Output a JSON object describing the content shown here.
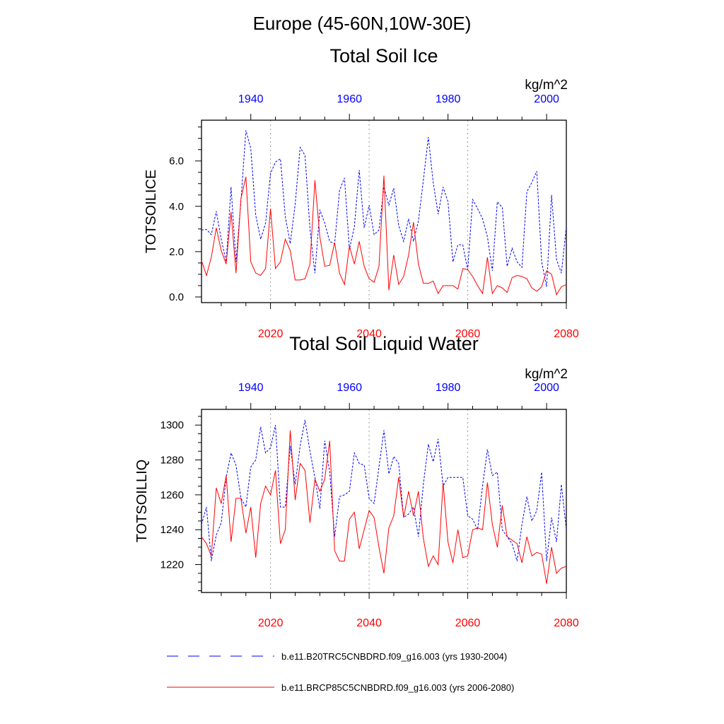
{
  "figure_title": "Europe (45-60N,10W-30E)",
  "colors": {
    "historical": "#0000ff",
    "future": "#ff0000",
    "grid": "#999999",
    "axis": "#000000"
  },
  "legend": [
    {
      "label": "b.e11.B20TRC5CNBDRD.f09_g16.003 (yrs 1930-2004)",
      "style": "dashed",
      "color": "#0000ff"
    },
    {
      "label": "b.e11.BRCP85C5CNBDRD.f09_g16.003 (yrs 2006-2080)",
      "style": "solid",
      "color": "#ff0000"
    }
  ],
  "chart_data": [
    {
      "type": "line",
      "title": "Total Soil Ice",
      "units": "kg/m^2",
      "ylabel": "TOTSOILICE",
      "ylim": [
        -0.25,
        7.8
      ],
      "yticks": [
        0.0,
        2.0,
        4.0,
        6.0
      ],
      "ytick_labels": [
        "0.0",
        "2.0",
        "4.0",
        "6.0"
      ],
      "yminor": [
        0.5,
        1.0,
        1.5,
        2.5,
        3.0,
        3.5,
        4.5,
        5.0,
        5.5,
        6.5,
        7.0,
        7.5
      ],
      "x_bottom": {
        "range": [
          2006,
          2080
        ],
        "ticks": [
          2020,
          2040,
          2060,
          2080
        ],
        "labels": [
          "2020",
          "2040",
          "2060",
          "2080"
        ]
      },
      "x_top": {
        "range": [
          1930,
          2004
        ],
        "ticks": [
          1940,
          1960,
          1980,
          2000
        ],
        "labels": [
          "1940",
          "1960",
          "1980",
          "2000"
        ]
      },
      "grid_x": [
        2020,
        2040,
        2060
      ],
      "series": [
        {
          "name": "b.e11.B20TRC5CNBDRD.f09_g16.003 (yrs 1930-2004)",
          "axis": "top",
          "x_start": 1930,
          "values": [
            2.95,
            2.98,
            2.75,
            3.78,
            2.55,
            1.55,
            4.85,
            1.55,
            4.25,
            7.35,
            6.55,
            3.6,
            2.55,
            3.25,
            5.45,
            5.95,
            6.1,
            3.55,
            2.35,
            4.1,
            6.6,
            6.25,
            3.0,
            1.05,
            3.85,
            3.25,
            2.45,
            2.35,
            4.7,
            5.25,
            2.1,
            3.1,
            5.6,
            3.05,
            4.05,
            2.75,
            2.95,
            4.85,
            4.05,
            4.8,
            3.15,
            2.45,
            3.45,
            2.45,
            3.35,
            5.15,
            7.05,
            5.05,
            3.65,
            4.85,
            4.2,
            1.55,
            2.3,
            2.3,
            1.2,
            4.3,
            3.9,
            3.45,
            2.65,
            1.15,
            4.2,
            3.95,
            1.35,
            2.15,
            1.55,
            1.3,
            4.65,
            5.05,
            5.55,
            1.55,
            0.45,
            4.5,
            1.65,
            1.05,
            3.1
          ]
        },
        {
          "name": "b.e11.BRCP85C5CNBDRD.f09_g16.003 (yrs 2006-2080)",
          "axis": "bottom",
          "x_start": 2006,
          "values": [
            1.6,
            0.95,
            1.75,
            3.05,
            2.05,
            1.45,
            3.75,
            1.05,
            4.35,
            5.3,
            1.55,
            1.05,
            0.95,
            1.25,
            3.9,
            1.25,
            1.55,
            2.55,
            2.05,
            0.75,
            0.75,
            0.8,
            1.45,
            5.15,
            2.65,
            1.35,
            1.4,
            2.4,
            1.05,
            0.55,
            2.25,
            1.45,
            2.45,
            1.35,
            0.8,
            0.65,
            1.35,
            5.35,
            0.3,
            1.85,
            0.55,
            0.9,
            1.85,
            3.3,
            1.45,
            0.6,
            0.6,
            0.7,
            0.15,
            0.5,
            0.5,
            0.5,
            0.35,
            1.25,
            1.2,
            0.9,
            0.5,
            0.15,
            1.75,
            0.15,
            0.5,
            0.4,
            0.2,
            0.85,
            0.95,
            0.9,
            0.8,
            0.4,
            0.25,
            0.45,
            1.15,
            1.0,
            0.1,
            0.45,
            0.55
          ]
        }
      ]
    },
    {
      "type": "line",
      "title": "Total Soil Liquid Water",
      "units": "kg/m^2",
      "ylabel": "TOTSOILLIQ",
      "ylim": [
        1204,
        1309
      ],
      "yticks": [
        1220,
        1240,
        1260,
        1280,
        1300
      ],
      "ytick_labels": [
        "1220",
        "1240",
        "1260",
        "1280",
        "1300"
      ],
      "yminor": [
        1205,
        1210,
        1215,
        1225,
        1230,
        1235,
        1245,
        1250,
        1255,
        1265,
        1270,
        1275,
        1285,
        1290,
        1295,
        1305
      ],
      "x_bottom": {
        "range": [
          2006,
          2080
        ],
        "ticks": [
          2020,
          2040,
          2060,
          2080
        ],
        "labels": [
          "2020",
          "2040",
          "2060",
          "2080"
        ]
      },
      "x_top": {
        "range": [
          1930,
          2004
        ],
        "ticks": [
          1940,
          1960,
          1980,
          2000
        ],
        "labels": [
          "1940",
          "1960",
          "1980",
          "2000"
        ]
      },
      "grid_x": [
        2020,
        2040,
        2060
      ],
      "series": [
        {
          "name": "b.e11.B20TRC5CNBDRD.f09_g16.003 (yrs 1930-2004)",
          "axis": "top",
          "x_start": 1930,
          "values": [
            1243,
            1253,
            1222,
            1237,
            1244,
            1270,
            1284,
            1277,
            1258,
            1253,
            1276,
            1280,
            1299,
            1284,
            1287,
            1300,
            1253,
            1253,
            1288,
            1266,
            1288,
            1303,
            1285,
            1270,
            1252,
            1291,
            1273,
            1236,
            1259,
            1260,
            1262,
            1284,
            1278,
            1277,
            1258,
            1255,
            1276,
            1297,
            1272,
            1282,
            1278,
            1247,
            1249,
            1253,
            1236,
            1266,
            1289,
            1279,
            1292,
            1265,
            1270,
            1270,
            1270,
            1270,
            1248,
            1246,
            1240,
            1265,
            1286,
            1271,
            1273,
            1240,
            1236,
            1232,
            1222,
            1243,
            1259,
            1245,
            1251,
            1273,
            1222,
            1247,
            1233,
            1266,
            1240
          ]
        },
        {
          "name": "b.e11.BRCP85C5CNBDRD.f09_g16.003 (yrs 2006-2080)",
          "axis": "bottom",
          "x_start": 2006,
          "values": [
            1236,
            1232,
            1225,
            1264,
            1255,
            1271,
            1233,
            1258,
            1258,
            1238,
            1253,
            1224,
            1255,
            1265,
            1260,
            1274,
            1232,
            1240,
            1297,
            1257,
            1278,
            1274,
            1244,
            1269,
            1262,
            1269,
            1291,
            1228,
            1222,
            1222,
            1246,
            1250,
            1229,
            1240,
            1251,
            1247,
            1230,
            1215,
            1241,
            1248,
            1270,
            1247,
            1262,
            1248,
            1262,
            1235,
            1219,
            1225,
            1220,
            1267,
            1233,
            1221,
            1240,
            1224,
            1225,
            1240,
            1241,
            1240,
            1267,
            1243,
            1230,
            1254,
            1236,
            1234,
            1232,
            1221,
            1236,
            1225,
            1227,
            1226,
            1209,
            1230,
            1215,
            1218,
            1219
          ]
        }
      ]
    }
  ]
}
